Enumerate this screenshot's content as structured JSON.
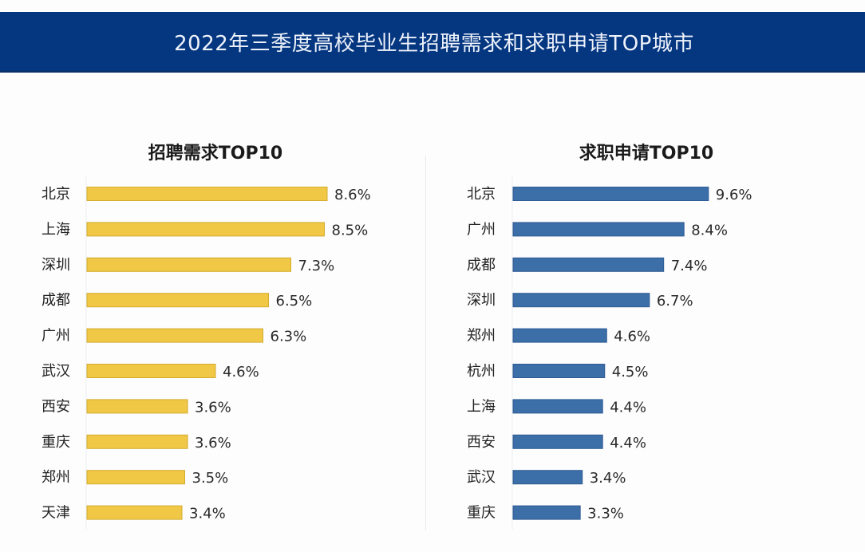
{
  "header": {
    "title": "2022年三季度高校毕业生招聘需求和求职申请TOP城市",
    "background_color": "#053781"
  },
  "chart_data": [
    {
      "type": "bar",
      "orientation": "horizontal",
      "title": "招聘需求TOP10",
      "color": "#f0c846",
      "categories": [
        "北京",
        "上海",
        "深圳",
        "成都",
        "广州",
        "武汉",
        "西安",
        "重庆",
        "郑州",
        "天津"
      ],
      "values": [
        8.6,
        8.5,
        7.3,
        6.5,
        6.3,
        4.6,
        3.6,
        3.6,
        3.5,
        3.4
      ],
      "value_labels": [
        "8.6%",
        "8.5%",
        "7.3%",
        "6.5%",
        "6.3%",
        "4.6%",
        "3.6%",
        "3.6%",
        "3.5%",
        "3.4%"
      ],
      "unit": "%",
      "xlabel": "",
      "ylabel": "",
      "grid": false,
      "legend": "none"
    },
    {
      "type": "bar",
      "orientation": "horizontal",
      "title": "求职申请TOP10",
      "color": "#3c6ea8",
      "categories": [
        "北京",
        "广州",
        "成都",
        "深圳",
        "郑州",
        "杭州",
        "上海",
        "西安",
        "武汉",
        "重庆"
      ],
      "values": [
        9.6,
        8.4,
        7.4,
        6.7,
        4.6,
        4.5,
        4.4,
        4.4,
        3.4,
        3.3
      ],
      "value_labels": [
        "9.6%",
        "8.4%",
        "7.4%",
        "6.7%",
        "4.6%",
        "4.5%",
        "4.4%",
        "4.4%",
        "3.4%",
        "3.3%"
      ],
      "unit": "%",
      "xlabel": "",
      "ylabel": "",
      "grid": false,
      "legend": "none"
    }
  ]
}
